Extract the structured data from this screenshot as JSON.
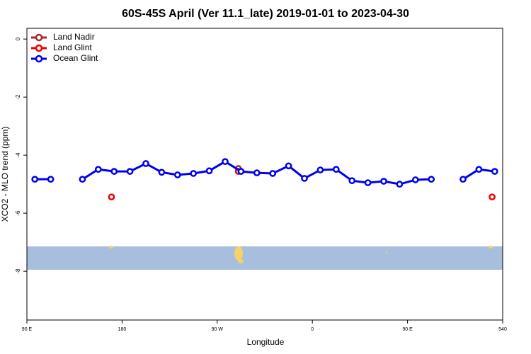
{
  "chart_data": {
    "type": "line",
    "title": "60S-45S April (Ver 11.1_late)   2019-01-01 to 2023-04-30",
    "x_label": "Longitude",
    "y_label": "XCO2 - MLO trend (ppm)",
    "xlim": [
      90,
      540
    ],
    "xticks": [
      {
        "value": 90,
        "label": "90 E"
      },
      180,
      {
        "value": 270,
        "label": "90 W"
      },
      {
        "value": 360,
        "label": "0"
      },
      {
        "value": 450,
        "label": "90 E"
      },
      540
    ],
    "ylim": [
      -9.68,
      0.37
    ],
    "yticks": [
      0,
      -2,
      -4,
      -6,
      -8
    ],
    "legend": "top-left",
    "series": [
      {
        "name": "Land Nadir",
        "color": "#a52a2a",
        "x": [
          290
        ],
        "values": [
          -4.46
        ]
      },
      {
        "name": "Land Glint",
        "color": "#ee0000",
        "x": [
          170,
          290,
          530
        ],
        "values": [
          -5.44,
          -4.56,
          -5.44
        ]
      },
      {
        "name": "Ocean Glint",
        "color": "#0000ee",
        "x": [
          97.5,
          112.5,
          142.5,
          157.5,
          172.5,
          187.5,
          202.5,
          217.5,
          232.5,
          247.5,
          262.5,
          277.5,
          292.5,
          307.5,
          322.5,
          337.5,
          352.5,
          367.5,
          382.5,
          397.5,
          412.5,
          427.5,
          442.5,
          457.5,
          472.5,
          502.5,
          517.5,
          532.5
        ],
        "values": [
          -4.83,
          -4.83,
          -4.83,
          -4.49,
          -4.56,
          -4.56,
          -4.29,
          -4.59,
          -4.68,
          -4.63,
          -4.54,
          -4.22,
          -4.56,
          -4.61,
          -4.63,
          -4.37,
          -4.8,
          -4.51,
          -4.49,
          -4.88,
          -4.95,
          -4.9,
          -5.0,
          -4.85,
          -4.83,
          -4.83,
          -4.49,
          -4.56
        ]
      }
    ]
  }
}
